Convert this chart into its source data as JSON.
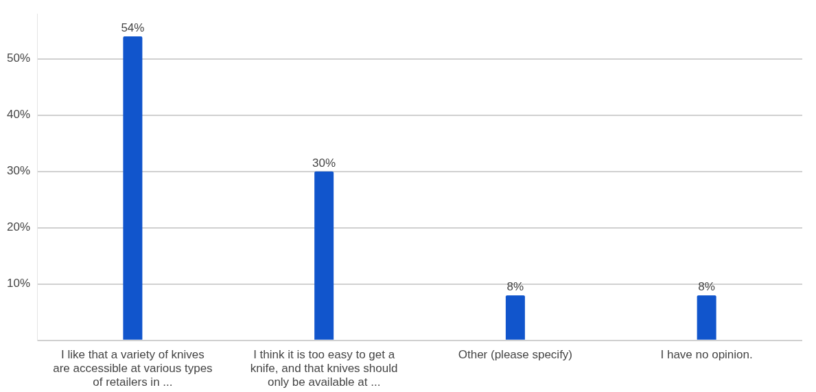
{
  "chart_data": {
    "type": "bar",
    "categories": [
      "I like that a variety of knives are accessible at various types of retailers in ...",
      "I think it is too easy to get a knife, and that knives should only be available at ...",
      "Other (please specify)",
      "I have no opinion."
    ],
    "values": [
      54,
      30,
      8,
      8
    ],
    "color": "#1155cc",
    "value_labels": [
      "54%",
      "30%",
      "8%",
      "8%"
    ],
    "yticks": [
      {
        "value": 0,
        "label": null
      },
      {
        "value": 10,
        "label": "10%"
      },
      {
        "value": 20,
        "label": "20%"
      },
      {
        "value": 30,
        "label": "30%"
      },
      {
        "value": 40,
        "label": "40%"
      },
      {
        "value": 50,
        "label": "50%"
      }
    ],
    "ylim": [
      0,
      58
    ],
    "grid": "y",
    "legend": false
  }
}
